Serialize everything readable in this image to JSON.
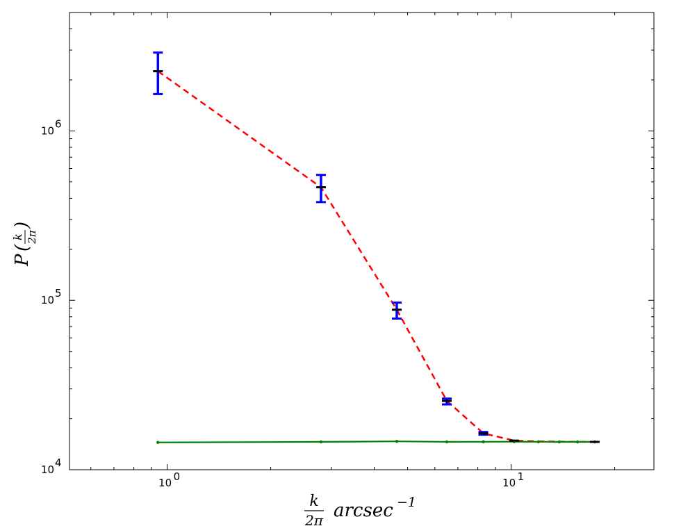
{
  "chart_data": {
    "type": "line",
    "title": "",
    "xlabel": {
      "frac_num": "k",
      "frac_den": "2π",
      "unit": "arcsec",
      "exp": "−1"
    },
    "ylabel": {
      "symbol": "P",
      "frac_num": "k",
      "frac_den": "2π"
    },
    "xscale": "log",
    "yscale": "log",
    "xlim": [
      0.52,
      26
    ],
    "ylim": [
      10000,
      5000000
    ],
    "xticks": [
      {
        "value": 1,
        "base": "10",
        "exp": "0"
      },
      {
        "value": 10,
        "base": "10",
        "exp": "1"
      }
    ],
    "yticks": [
      {
        "value": 10000,
        "base": "10",
        "exp": "4"
      },
      {
        "value": 100000,
        "base": "10",
        "exp": "5"
      },
      {
        "value": 1000000,
        "base": "10",
        "exp": "6"
      }
    ],
    "grid": false,
    "legend": "none",
    "series": [
      {
        "style": "dashed",
        "color": "#ff0000",
        "x": [
          0.94,
          2.8,
          4.65,
          6.5,
          8.3,
          10.2,
          12.0,
          13.8,
          15.6,
          17.5
        ],
        "y": [
          2250000,
          465000,
          88000,
          25500,
          16400,
          14850,
          14700,
          14650,
          14600,
          14600
        ]
      },
      {
        "style": "solid",
        "color": "#008000",
        "marker": "dot",
        "x": [
          0.94,
          2.8,
          4.65,
          6.5,
          8.3,
          10.2,
          12.0,
          13.8,
          15.6,
          17.5
        ],
        "y": [
          14500,
          14600,
          14700,
          14600,
          14620,
          14640,
          14620,
          14600,
          14600,
          14600
        ]
      }
    ],
    "errorbars": {
      "color": "#0000ff",
      "x": [
        0.94,
        2.8,
        4.65,
        6.5,
        8.3
      ],
      "y": [
        2250000,
        465000,
        88000,
        25500,
        16400
      ],
      "ylow": [
        1650000,
        380000,
        78000,
        24300,
        16100
      ],
      "yhigh": [
        2900000,
        550000,
        97000,
        26300,
        16700
      ]
    },
    "markers": {
      "color": "#000000",
      "x": [
        0.94,
        2.8,
        4.65,
        6.5,
        8.3,
        10.2,
        17.5
      ],
      "y": [
        2250000,
        465000,
        88000,
        25500,
        16400,
        14850,
        14600
      ]
    }
  }
}
